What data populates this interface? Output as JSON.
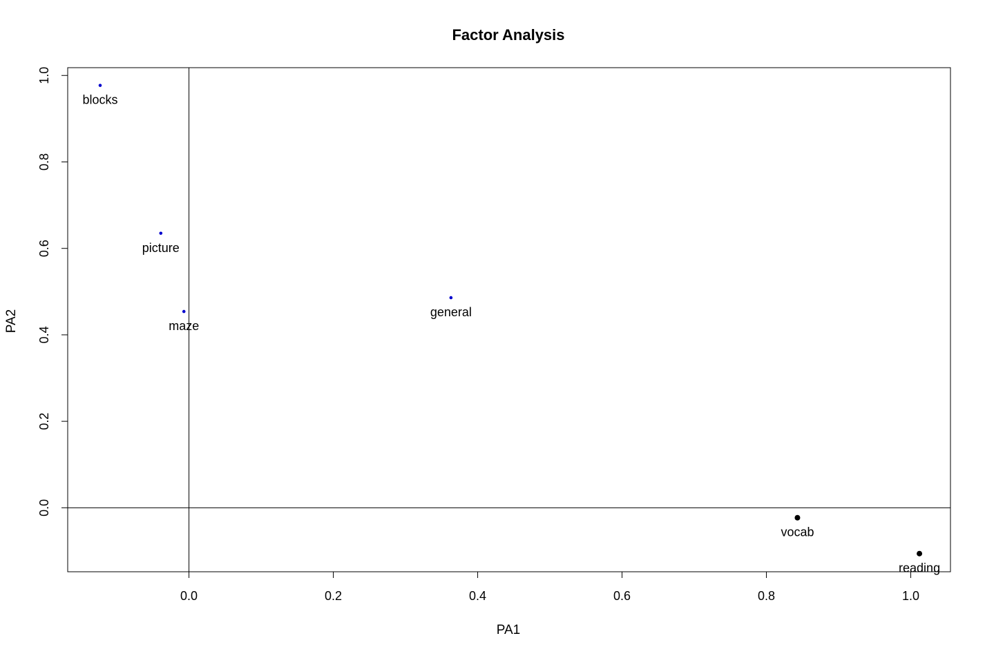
{
  "chart_data": {
    "type": "scatter",
    "title": "Factor Analysis",
    "xlabel": "PA1",
    "ylabel": "PA2",
    "xlim": [
      -0.168,
      1.055
    ],
    "ylim": [
      -0.148,
      1.018
    ],
    "x_ticks": [
      "0.0",
      "0.2",
      "0.4",
      "0.6",
      "0.8",
      "1.0"
    ],
    "y_ticks": [
      "0.0",
      "0.2",
      "0.4",
      "0.6",
      "0.8",
      "1.0"
    ],
    "reference_lines": {
      "x": 0,
      "y": 0
    },
    "grid": false,
    "colors": {
      "group1": "#0000cd",
      "group2": "#000000"
    },
    "points": [
      {
        "label": "blocks",
        "x": -0.123,
        "y": 0.977,
        "group": "group1"
      },
      {
        "label": "picture",
        "x": -0.039,
        "y": 0.635,
        "group": "group1"
      },
      {
        "label": "maze",
        "x": -0.007,
        "y": 0.454,
        "group": "group1"
      },
      {
        "label": "general",
        "x": 0.363,
        "y": 0.486,
        "group": "group1"
      },
      {
        "label": "vocab",
        "x": 0.843,
        "y": -0.023,
        "group": "group2"
      },
      {
        "label": "reading",
        "x": 1.012,
        "y": -0.106,
        "group": "group2"
      }
    ]
  }
}
